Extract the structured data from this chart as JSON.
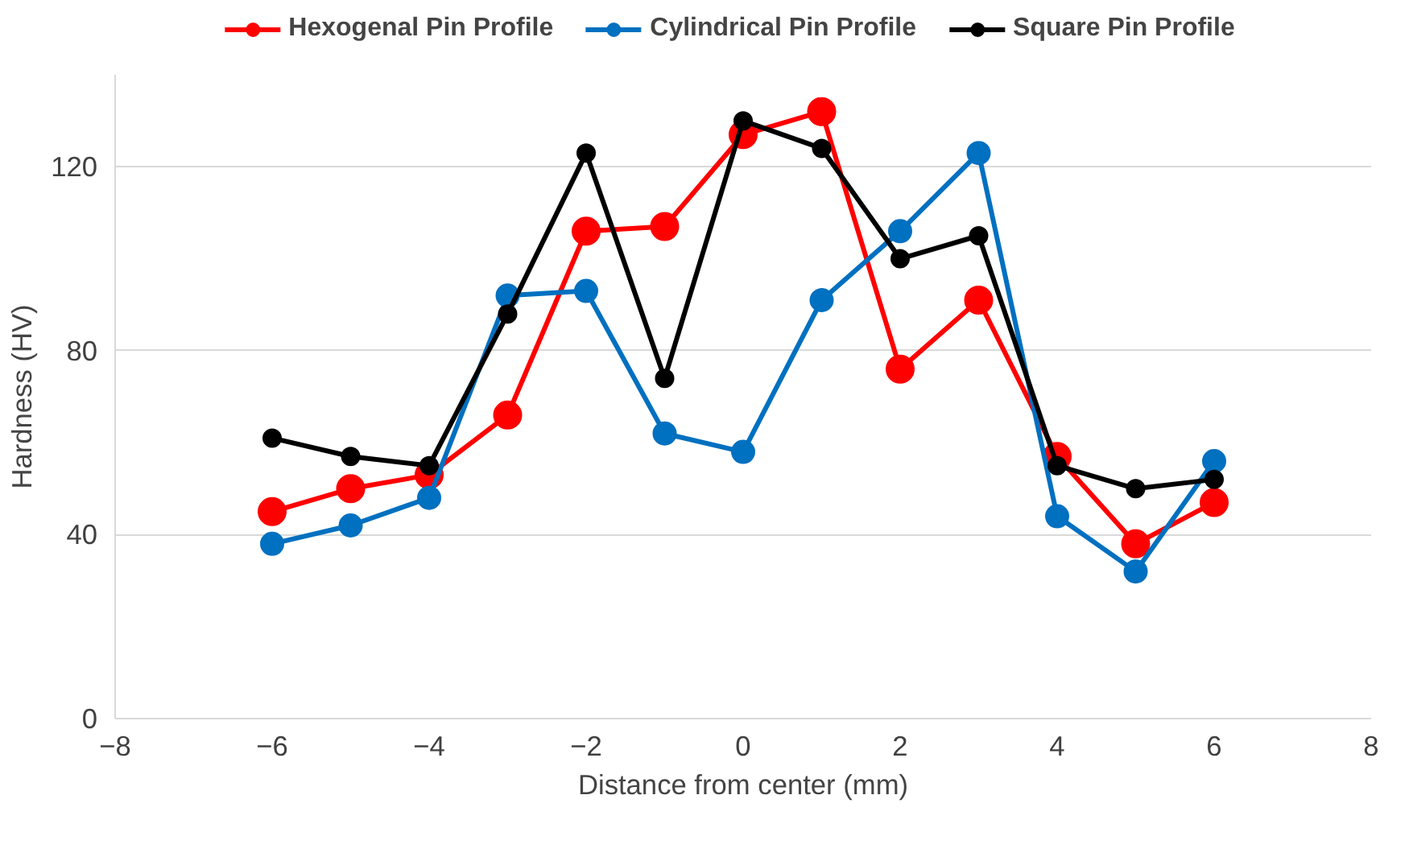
{
  "chart_data": {
    "type": "line",
    "xlabel": "Distance from center (mm)",
    "ylabel": "Hardness (HV)",
    "x": [
      -6,
      -5,
      -4,
      -3,
      -2,
      -1,
      0,
      1,
      2,
      3,
      4,
      5,
      6
    ],
    "series": [
      {
        "name": "Hexogenal Pin Profile",
        "color": "#ff0000",
        "values": [
          45,
          50,
          53,
          66,
          106,
          107,
          127,
          132,
          76,
          91,
          57,
          38,
          47
        ]
      },
      {
        "name": "Cylindrical Pin Profile",
        "color": "#0070c0",
        "values": [
          38,
          42,
          48,
          92,
          93,
          62,
          58,
          91,
          106,
          123,
          44,
          32,
          56
        ]
      },
      {
        "name": "Square Pin Profile",
        "color": "#000000",
        "values": [
          61,
          57,
          55,
          88,
          123,
          74,
          130,
          124,
          100,
          105,
          55,
          50,
          52
        ]
      }
    ],
    "xlim": [
      -8,
      8
    ],
    "xticks": [
      -8,
      -6,
      -4,
      -2,
      0,
      2,
      4,
      6,
      8
    ],
    "ylim": [
      0,
      140
    ],
    "yticks": [
      0,
      40,
      80,
      120
    ],
    "grid": "y",
    "legend": "top",
    "marker": "circle",
    "line_style": "solid"
  }
}
